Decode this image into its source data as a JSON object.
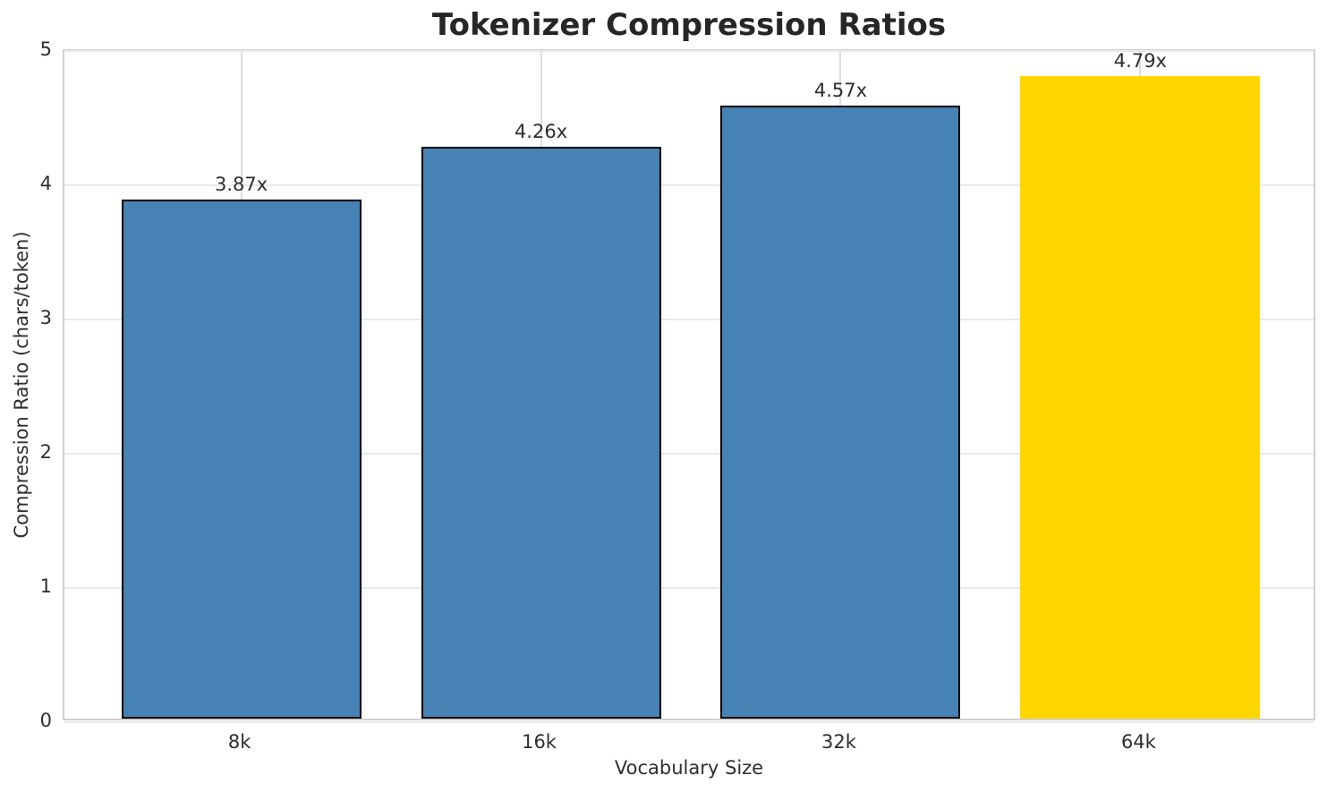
{
  "chart_data": {
    "type": "bar",
    "title": "Tokenizer Compression Ratios",
    "xlabel": "Vocabulary Size",
    "ylabel": "Compression Ratio (chars/token)",
    "categories": [
      "8k",
      "16k",
      "32k",
      "64k"
    ],
    "values": [
      3.87,
      4.26,
      4.57,
      4.79
    ],
    "bar_labels": [
      "3.87x",
      "4.26x",
      "4.57x",
      "4.79x"
    ],
    "bar_colors": [
      "#4682b4",
      "#4682b4",
      "#4682b4",
      "#ffd700"
    ],
    "bar_edge_colors": [
      "#000000",
      "#000000",
      "#000000",
      "none"
    ],
    "highlight_index": 3,
    "ylim": [
      0,
      5
    ],
    "yticks": [
      0,
      1,
      2,
      3,
      4,
      5
    ],
    "bar_width_data_units": 0.8,
    "grid": true,
    "legend_position": "none"
  },
  "colors": {
    "background": "#ffffff",
    "grid_horizontal": "#e9e9e9",
    "grid_vertical": "#dedede",
    "spine": "#cfcfcf",
    "text": "#2e2e2e",
    "title_text": "#262626"
  }
}
